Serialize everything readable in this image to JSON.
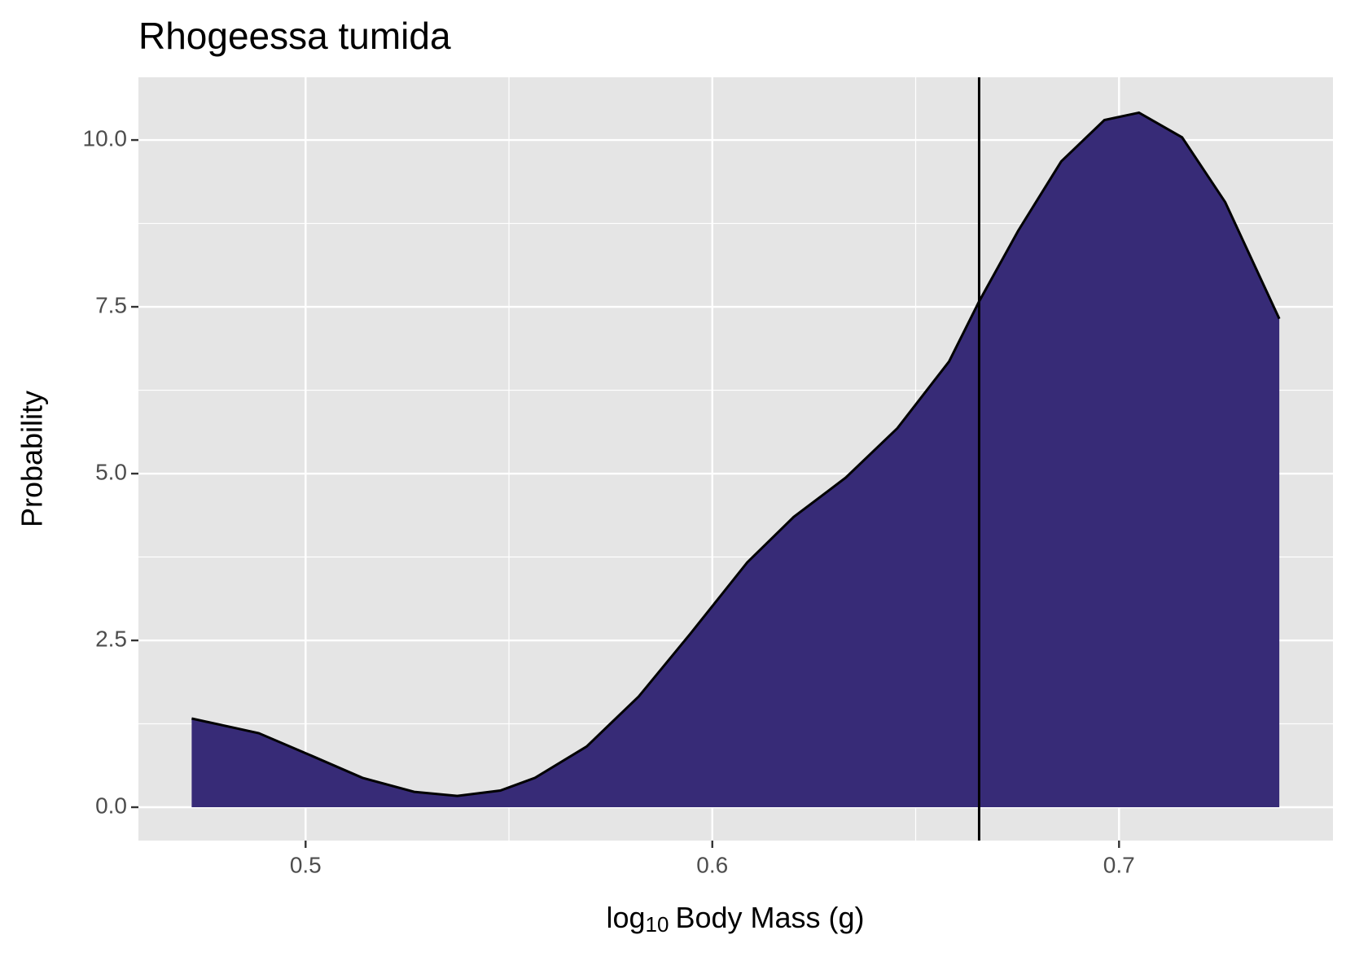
{
  "chart_data": {
    "type": "density",
    "title": "Rhogeessa tumida",
    "ylabel": "Probability",
    "xlabel": {
      "base": "log",
      "subscript": "10",
      "rest": "Body Mass (g)"
    },
    "x": [
      0.472,
      0.4885,
      0.5,
      0.514,
      0.5267,
      0.5373,
      0.5479,
      0.5564,
      0.5691,
      0.5819,
      0.5946,
      0.6086,
      0.62,
      0.6328,
      0.6455,
      0.6582,
      0.6656,
      0.6752,
      0.6858,
      0.6964,
      0.7049,
      0.7155,
      0.7261,
      0.7394
    ],
    "values": [
      1.33,
      1.11,
      0.81,
      0.44,
      0.23,
      0.17,
      0.25,
      0.44,
      0.91,
      1.66,
      2.6,
      3.67,
      4.35,
      4.94,
      5.68,
      6.68,
      7.58,
      8.64,
      9.68,
      10.3,
      10.41,
      10.04,
      9.07,
      7.32
    ],
    "color": "#372b77",
    "line_color": "#000000",
    "vline": 0.6656,
    "xlim": [
      0.4589,
      0.7526
    ],
    "ylim": [
      -0.5,
      10.94
    ],
    "xticks": [
      0.5,
      0.6,
      0.7
    ],
    "yticks": [
      {
        "value": 0,
        "label": "0.0"
      },
      2.5,
      {
        "value": 5,
        "label": "5.0"
      },
      7.5,
      {
        "value": 10,
        "label": "10.0"
      }
    ],
    "grid": true
  }
}
